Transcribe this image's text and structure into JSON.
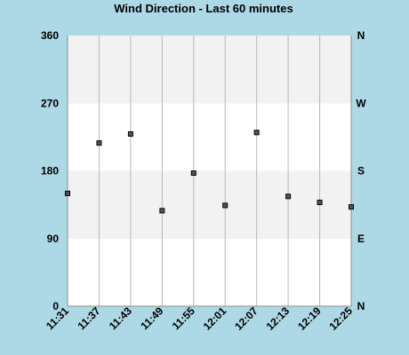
{
  "chart_data": {
    "type": "scatter",
    "title": "Wind Direction - Last 60 minutes",
    "xlabel": "",
    "ylabel": "",
    "x_ticks": [
      "11:31",
      "11:37",
      "11:43",
      "11:49",
      "11:55",
      "12:01",
      "12:07",
      "12:13",
      "12:19",
      "12:25"
    ],
    "xlim": [
      "11:31",
      "12:25"
    ],
    "y_ticks_left": [
      "0",
      "90",
      "180",
      "270",
      "360"
    ],
    "y_ticks_right": [
      "N",
      "E",
      "S",
      "W",
      "N"
    ],
    "ylim": [
      0,
      360
    ],
    "grid": {
      "vertical": true,
      "bands": true
    },
    "band_colors": [
      "#ffffff",
      "#f2f2f2"
    ],
    "point_color": "#555555",
    "points": [
      {
        "x": "11:31",
        "y": 150
      },
      {
        "x": "11:37",
        "y": 217
      },
      {
        "x": "11:43",
        "y": 229
      },
      {
        "x": "11:49",
        "y": 127
      },
      {
        "x": "11:55",
        "y": 177
      },
      {
        "x": "12:01",
        "y": 134
      },
      {
        "x": "12:07",
        "y": 231
      },
      {
        "x": "12:13",
        "y": 146
      },
      {
        "x": "12:19",
        "y": 138
      },
      {
        "x": "12:25",
        "y": 132
      }
    ]
  }
}
